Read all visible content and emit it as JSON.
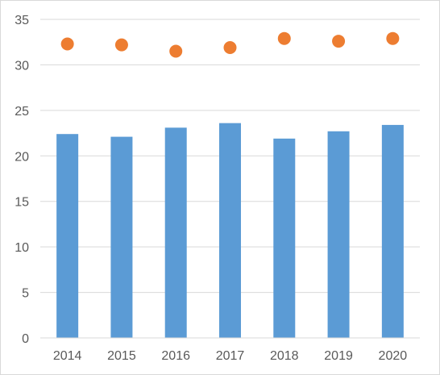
{
  "chart_data": {
    "type": "bar",
    "categories": [
      "2014",
      "2015",
      "2016",
      "2017",
      "2018",
      "2019",
      "2020"
    ],
    "series": [
      {
        "type": "bar",
        "values": [
          22.4,
          22.1,
          23.1,
          23.6,
          21.9,
          22.7,
          23.4
        ],
        "color": "#5b9bd5"
      },
      {
        "type": "scatter",
        "values": [
          32.3,
          32.2,
          31.5,
          31.9,
          32.9,
          32.6,
          32.9
        ],
        "color": "#ed7d31"
      }
    ],
    "title": "",
    "xlabel": "",
    "ylabel": "",
    "ylim": [
      0,
      35
    ],
    "yticks": [
      "0",
      "5",
      "10",
      "15",
      "20",
      "25",
      "30",
      "35"
    ],
    "grid": true,
    "legend": "none",
    "colors": {
      "grid": "#d9d9d9",
      "axis": "#d9d9d9",
      "text": "#595959"
    }
  }
}
